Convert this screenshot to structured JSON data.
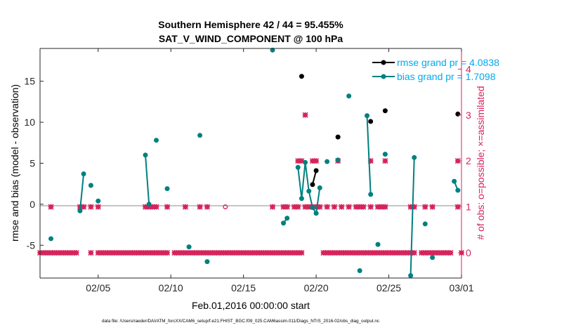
{
  "chart_data": {
    "type": "scatter",
    "title_line1": "Southern Hemisphere 42 / 44 = 95.455%",
    "title_line2": "SAT_V_WIND_COMPONENT @ 100 hPa",
    "xlabel": "Feb.01,2016 00:00:00 start",
    "ylabel_left": "rmse and bias (model - observation)",
    "ylabel_right": "# of obs: o=possible; ×=assimilated",
    "footer": "data file: /Users/raeder/DAI/ATM_forcXX/CAM6_setup/f.e21.FHIST_BGC.f09_025.CAM6assim.011/Diags_NTrS_2016-02/obs_diag_output.nc",
    "xlim": [
      1,
      30
    ],
    "ylim_left": [
      -9,
      19
    ],
    "ylim_right": [
      -0.55,
      4.45
    ],
    "x_ticks": [
      {
        "value": 5,
        "label": "02/05"
      },
      {
        "value": 10,
        "label": "02/10"
      },
      {
        "value": 15,
        "label": "02/15"
      },
      {
        "value": 20,
        "label": "02/20"
      },
      {
        "value": 25,
        "label": "02/25"
      },
      {
        "value": 30,
        "label": "03/01"
      }
    ],
    "y_ticks_left": [
      {
        "value": -5,
        "label": "-5"
      },
      {
        "value": 0,
        "label": "0"
      },
      {
        "value": 5,
        "label": "5"
      },
      {
        "value": 10,
        "label": "10"
      },
      {
        "value": 15,
        "label": "15"
      }
    ],
    "y_ticks_right": [
      {
        "value": 0,
        "label": "0"
      },
      {
        "value": 1,
        "label": "1"
      },
      {
        "value": 2,
        "label": "2"
      },
      {
        "value": 3,
        "label": "3"
      },
      {
        "value": 4,
        "label": "4"
      }
    ],
    "legend": [
      {
        "label": "rmse grand pr = 4.0838",
        "color": "#000000"
      },
      {
        "label": "bias grand pr = 1.7098",
        "color": "#008080"
      }
    ],
    "legend_text_color": "#00aaee",
    "legend_position": "top-right",
    "colors": {
      "rmse": "#000000",
      "bias": "#008080",
      "nobs": "#d6245c",
      "zero_line": "#b3b3b3"
    },
    "series": [
      {
        "name": "rmse grand pr = 4.0838",
        "color": "#000000",
        "segments": [
          [
            [
              19,
              15.6
            ]
          ],
          [
            [
              19.75,
              2.4
            ],
            [
              20,
              4.1
            ]
          ],
          [
            [
              21.5,
              8.2
            ]
          ],
          [
            [
              23.75,
              10.1
            ]
          ],
          [
            [
              24.75,
              11.4
            ]
          ],
          [
            [
              29.75,
              11.0
            ]
          ]
        ]
      },
      {
        "name": "bias grand pr = 1.7098",
        "color": "#008080",
        "segments": [
          [
            [
              1.75,
              -4.2
            ]
          ],
          [
            [
              3.75,
              -0.8
            ],
            [
              4,
              3.7
            ]
          ],
          [
            [
              4.5,
              2.3
            ]
          ],
          [
            [
              5,
              0.4
            ]
          ],
          [
            [
              8.25,
              6.0
            ],
            [
              8.5,
              0.0
            ]
          ],
          [
            [
              9,
              7.8
            ]
          ],
          [
            [
              9.75,
              1.9
            ]
          ],
          [
            [
              11.25,
              -5.2
            ]
          ],
          [
            [
              12,
              8.4
            ]
          ],
          [
            [
              12.5,
              -7.0
            ]
          ],
          [
            [
              17,
              18.8
            ]
          ],
          [
            [
              17.75,
              -2.3
            ],
            [
              18,
              -1.7
            ]
          ],
          [
            [
              18.75,
              4.5
            ],
            [
              19,
              0.7
            ],
            [
              19.25,
              5.1
            ],
            [
              19.5,
              1.6
            ],
            [
              19.75,
              -0.4
            ],
            [
              20,
              -1.1
            ],
            [
              20.25,
              2.0
            ]
          ],
          [
            [
              20.75,
              5.2
            ]
          ],
          [
            [
              21.5,
              5.4
            ]
          ],
          [
            [
              22.25,
              13.2
            ]
          ],
          [
            [
              23,
              -8.1
            ]
          ],
          [
            [
              23.5,
              10.8
            ],
            [
              23.75,
              1.2
            ]
          ],
          [
            [
              24.25,
              -4.9
            ]
          ],
          [
            [
              24.75,
              6.1
            ]
          ],
          [
            [
              26.5,
              -8.7
            ],
            [
              26.75,
              5.7
            ]
          ],
          [
            [
              27.5,
              -2.4
            ]
          ],
          [
            [
              28,
              -6.5
            ]
          ],
          [
            [
              29.5,
              2.8
            ],
            [
              29.75,
              1.7
            ]
          ]
        ]
      }
    ],
    "obs_possible_not_assimilated": [
      [
        13.75,
        1
      ]
    ],
    "obs_assimilated": [
      [
        1,
        0
      ],
      [
        1.25,
        0
      ],
      [
        1.5,
        0
      ],
      [
        1.75,
        1
      ],
      [
        1.75,
        0
      ],
      [
        2,
        0
      ],
      [
        2.25,
        0
      ],
      [
        2.5,
        0
      ],
      [
        2.75,
        0
      ],
      [
        3,
        0
      ],
      [
        3.25,
        0
      ],
      [
        3.5,
        0
      ],
      [
        3.75,
        1
      ],
      [
        4,
        1
      ],
      [
        4.5,
        1
      ],
      [
        4.5,
        0
      ],
      [
        5,
        1
      ],
      [
        5,
        0
      ],
      [
        5.25,
        0
      ],
      [
        5.5,
        0
      ],
      [
        5.75,
        0
      ],
      [
        6,
        0
      ],
      [
        6.25,
        0
      ],
      [
        6.5,
        0
      ],
      [
        6.75,
        0
      ],
      [
        7,
        0
      ],
      [
        7.25,
        0
      ],
      [
        7.5,
        0
      ],
      [
        7.75,
        0
      ],
      [
        8,
        0
      ],
      [
        8.25,
        1
      ],
      [
        8.25,
        0
      ],
      [
        8.5,
        1
      ],
      [
        8.5,
        0
      ],
      [
        8.75,
        1
      ],
      [
        8.75,
        0
      ],
      [
        9,
        1
      ],
      [
        9,
        0
      ],
      [
        9.25,
        0
      ],
      [
        9.5,
        0
      ],
      [
        9.75,
        1
      ],
      [
        9.75,
        0
      ],
      [
        10.25,
        0
      ],
      [
        10.5,
        0
      ],
      [
        10.75,
        0
      ],
      [
        11,
        1
      ],
      [
        11,
        0
      ],
      [
        11.25,
        0
      ],
      [
        11.5,
        0
      ],
      [
        11.75,
        0
      ],
      [
        12,
        1
      ],
      [
        12,
        0
      ],
      [
        12.25,
        0
      ],
      [
        12.5,
        1
      ],
      [
        12.5,
        0
      ],
      [
        12.75,
        0
      ],
      [
        13,
        0
      ],
      [
        13.25,
        0
      ],
      [
        13.5,
        0
      ],
      [
        13.75,
        0
      ],
      [
        14,
        0
      ],
      [
        14.25,
        0
      ],
      [
        14.5,
        0
      ],
      [
        14.75,
        0
      ],
      [
        15,
        0
      ],
      [
        15.25,
        0
      ],
      [
        15.5,
        0
      ],
      [
        15.75,
        0
      ],
      [
        16,
        0
      ],
      [
        16.25,
        0
      ],
      [
        16.5,
        0
      ],
      [
        16.75,
        0
      ],
      [
        17,
        1
      ],
      [
        17,
        0
      ],
      [
        17.25,
        0
      ],
      [
        17.5,
        0
      ],
      [
        17.75,
        1
      ],
      [
        17.75,
        0
      ],
      [
        18,
        1
      ],
      [
        18,
        0
      ],
      [
        18.25,
        0
      ],
      [
        18.5,
        1
      ],
      [
        18.5,
        0
      ],
      [
        18.75,
        2
      ],
      [
        18.75,
        1
      ],
      [
        18.75,
        0
      ],
      [
        19,
        2
      ],
      [
        19,
        0
      ],
      [
        19.25,
        3
      ],
      [
        19.25,
        1
      ],
      [
        19.5,
        1
      ],
      [
        19.75,
        2
      ],
      [
        19.75,
        1
      ],
      [
        20,
        2
      ],
      [
        20,
        1
      ],
      [
        20.25,
        1
      ],
      [
        20.75,
        1
      ],
      [
        21.25,
        1
      ],
      [
        21.5,
        2
      ],
      [
        21.75,
        1
      ],
      [
        22.25,
        1
      ],
      [
        22.75,
        1
      ],
      [
        23,
        1
      ],
      [
        23.25,
        1
      ],
      [
        23.75,
        2
      ],
      [
        23.75,
        1
      ],
      [
        24.25,
        1
      ],
      [
        24.5,
        1
      ],
      [
        24.75,
        2
      ],
      [
        24.75,
        1
      ],
      [
        26.5,
        1
      ],
      [
        26.75,
        1
      ],
      [
        27.5,
        1
      ],
      [
        28,
        1
      ],
      [
        29.75,
        2
      ],
      [
        29.75,
        1
      ],
      [
        20.5,
        0
      ],
      [
        20.75,
        0
      ],
      [
        21,
        0
      ],
      [
        21.25,
        0
      ],
      [
        21.5,
        0
      ],
      [
        21.75,
        0
      ],
      [
        22,
        0
      ],
      [
        22.25,
        0
      ],
      [
        22.5,
        0
      ],
      [
        22.75,
        0
      ],
      [
        23,
        0
      ],
      [
        23.25,
        0
      ],
      [
        23.5,
        0
      ],
      [
        23.75,
        0
      ],
      [
        24,
        0
      ],
      [
        24.25,
        0
      ],
      [
        24.5,
        0
      ],
      [
        24.75,
        0
      ],
      [
        25,
        0
      ],
      [
        25.25,
        0
      ],
      [
        25.5,
        0
      ],
      [
        25.75,
        0
      ],
      [
        26,
        0
      ],
      [
        26.25,
        0
      ],
      [
        26.5,
        0
      ],
      [
        26.75,
        0
      ],
      [
        27.25,
        0
      ],
      [
        27.5,
        0
      ],
      [
        27.75,
        0
      ],
      [
        28,
        0
      ],
      [
        28.25,
        0
      ],
      [
        28.5,
        0
      ],
      [
        28.75,
        0
      ],
      [
        29,
        0
      ],
      [
        29.25,
        0
      ],
      [
        30,
        0
      ]
    ]
  }
}
